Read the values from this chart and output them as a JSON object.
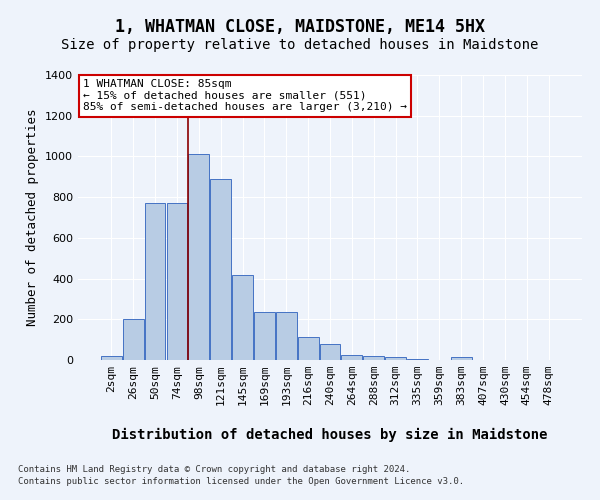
{
  "title": "1, WHATMAN CLOSE, MAIDSTONE, ME14 5HX",
  "subtitle": "Size of property relative to detached houses in Maidstone",
  "xlabel": "Distribution of detached houses by size in Maidstone",
  "ylabel": "Number of detached properties",
  "categories": [
    "2sqm",
    "26sqm",
    "50sqm",
    "74sqm",
    "98sqm",
    "121sqm",
    "145sqm",
    "169sqm",
    "193sqm",
    "216sqm",
    "240sqm",
    "264sqm",
    "288sqm",
    "312sqm",
    "335sqm",
    "359sqm",
    "383sqm",
    "407sqm",
    "430sqm",
    "454sqm",
    "478sqm"
  ],
  "values": [
    20,
    200,
    770,
    770,
    1010,
    890,
    420,
    235,
    235,
    115,
    80,
    25,
    20,
    15,
    5,
    0,
    15,
    0,
    0,
    0,
    0
  ],
  "bar_color": "#b8cce4",
  "bar_edge_color": "#4472c4",
  "background_color": "#eef3fb",
  "vline_x": 3.5,
  "vline_color": "#8b0000",
  "annotation_text": "1 WHATMAN CLOSE: 85sqm\n← 15% of detached houses are smaller (551)\n85% of semi-detached houses are larger (3,210) →",
  "annotation_box_color": "#ffffff",
  "annotation_box_edge": "#cc0000",
  "ylim": [
    0,
    1400
  ],
  "yticks": [
    0,
    200,
    400,
    600,
    800,
    1000,
    1200,
    1400
  ],
  "footer1": "Contains HM Land Registry data © Crown copyright and database right 2024.",
  "footer2": "Contains public sector information licensed under the Open Government Licence v3.0.",
  "title_fontsize": 12,
  "subtitle_fontsize": 10,
  "xlabel_fontsize": 10,
  "ylabel_fontsize": 9,
  "tick_fontsize": 8,
  "ann_fontsize": 8
}
